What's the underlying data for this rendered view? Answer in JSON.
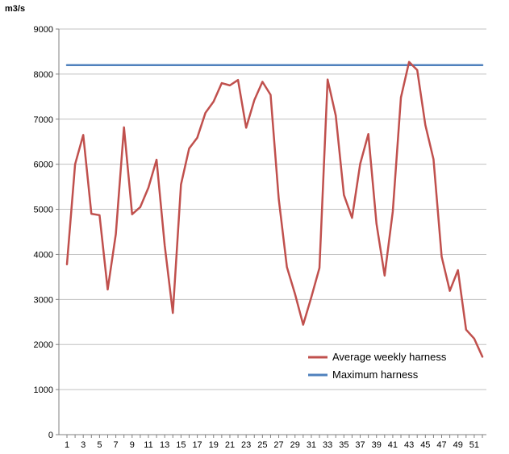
{
  "chart_data": {
    "type": "line",
    "ylabel": "m3/s",
    "ylim": [
      0,
      9000
    ],
    "yticks": [
      0,
      1000,
      2000,
      3000,
      4000,
      5000,
      6000,
      7000,
      8000,
      9000
    ],
    "xlim": [
      1,
      52
    ],
    "xticks": [
      1,
      3,
      5,
      7,
      9,
      11,
      13,
      15,
      17,
      19,
      21,
      23,
      25,
      27,
      29,
      31,
      33,
      35,
      37,
      39,
      41,
      43,
      45,
      47,
      49,
      51
    ],
    "grid": "horizontal",
    "legend_position": "bottom-right",
    "x": [
      1,
      2,
      3,
      4,
      5,
      6,
      7,
      8,
      9,
      10,
      11,
      12,
      13,
      14,
      15,
      16,
      17,
      18,
      19,
      20,
      21,
      22,
      23,
      24,
      25,
      26,
      27,
      28,
      29,
      30,
      31,
      32,
      33,
      34,
      35,
      36,
      37,
      38,
      39,
      40,
      41,
      42,
      43,
      44,
      45,
      46,
      47,
      48,
      49,
      50,
      51,
      52
    ],
    "series": [
      {
        "name": "Average weekly harness",
        "color": "#c0504d",
        "values": [
          3780,
          6000,
          6650,
          4900,
          4870,
          3220,
          4450,
          6820,
          4890,
          5050,
          5480,
          6100,
          4200,
          2700,
          5550,
          6350,
          6590,
          7140,
          7390,
          7800,
          7750,
          7870,
          6810,
          7420,
          7830,
          7540,
          5230,
          3720,
          3120,
          2440,
          3050,
          3700,
          7880,
          7080,
          5320,
          4810,
          6010,
          6670,
          4680,
          3530,
          4950,
          7480,
          8270,
          8090,
          6870,
          6110,
          3950,
          3190,
          3650,
          2330,
          2130,
          1730
        ]
      },
      {
        "name": "Maximum harness",
        "color": "#4f81bd",
        "values": [
          8200,
          8200,
          8200,
          8200,
          8200,
          8200,
          8200,
          8200,
          8200,
          8200,
          8200,
          8200,
          8200,
          8200,
          8200,
          8200,
          8200,
          8200,
          8200,
          8200,
          8200,
          8200,
          8200,
          8200,
          8200,
          8200,
          8200,
          8200,
          8200,
          8200,
          8200,
          8200,
          8200,
          8200,
          8200,
          8200,
          8200,
          8200,
          8200,
          8200,
          8200,
          8200,
          8200,
          8200,
          8200,
          8200,
          8200,
          8200,
          8200,
          8200,
          8200,
          8200
        ]
      }
    ]
  }
}
